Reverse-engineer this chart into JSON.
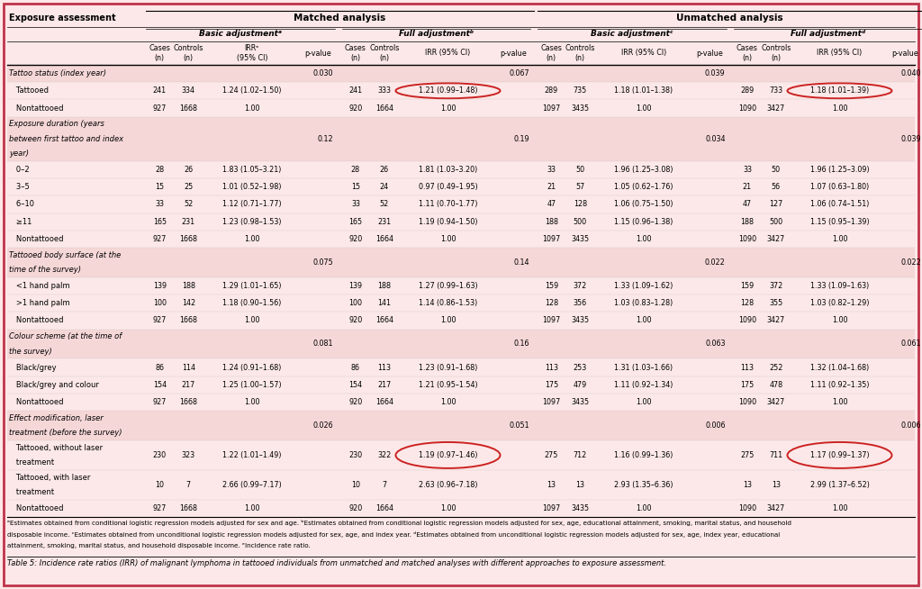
{
  "bg_color": "#fce8e8",
  "border_color": "#c0344a",
  "group_labels": [
    "Basic adjustmentᵃ",
    "Full adjustmentᵇ",
    "Basic adjustmentᶜ",
    "Full adjustmentᵈ"
  ],
  "col_headers": [
    "Cases\n(n)",
    "Controls\n(n)",
    "IRRᵉ\n(95% CI)",
    "p-value",
    "Cases\n(n)",
    "Controls\n(n)",
    "IRR (95% CI)",
    "p-value",
    "Cases\n(n)",
    "Controls\n(n)",
    "IRR (95% CI)",
    "p-value",
    "Cases\n(n)",
    "Controls\n(n)",
    "IRR (95% CI)",
    "p-value"
  ],
  "footnote_text": "ᵃEstimates obtained from conditional logistic regression models adjusted for sex and age. ᵇEstimates obtained from conditional logistic regression models adjusted for sex, age, educational attainment, smoking, marital status, and household disposable income. ᶜEstimates obtained from unconditional logistic regression models adjusted for sex, age, and index year. ᵈEstimates obtained from unconditional logistic regression models adjusted for sex, age, index year, educational attainment, smoking, marital status, and household disposable income. ᵉIncidence rate ratio.",
  "caption": "Table 5: Incidence rate ratios (IRR) of malignant lymphoma in tattooed individuals from unmatched and matched analyses with different approaches to exposure assessment.",
  "circles": [
    [
      1,
      6
    ],
    [
      1,
      14
    ],
    [
      18,
      6
    ],
    [
      18,
      14
    ]
  ],
  "rows": [
    {
      "label": "Tattoo status (index year)",
      "italic": true,
      "data": [
        "",
        "",
        "",
        "0.030",
        "",
        "",
        "",
        "0.067",
        "",
        "",
        "",
        "0.039",
        "",
        "",
        "",
        "0.040"
      ]
    },
    {
      "label": "   Tattooed",
      "italic": false,
      "data": [
        "241",
        "334",
        "1.24 (1.02–1.50)",
        "",
        "241",
        "333",
        "1.21 (0.99–1.48)",
        "",
        "289",
        "735",
        "1.18 (1.01–1.38)",
        "",
        "289",
        "733",
        "1.18 (1.01–1.39)",
        ""
      ]
    },
    {
      "label": "   Nontattooed",
      "italic": false,
      "data": [
        "927",
        "1668",
        "1.00",
        "",
        "920",
        "1664",
        "1.00",
        "",
        "1097",
        "3435",
        "1.00",
        "",
        "1090",
        "3427",
        "1.00",
        ""
      ]
    },
    {
      "label": "Exposure duration (years\nbetween first tattoo and index\nyear)",
      "italic": true,
      "data": [
        "",
        "",
        "",
        "0.12",
        "",
        "",
        "",
        "0.19",
        "",
        "",
        "",
        "0.034",
        "",
        "",
        "",
        "0.039"
      ]
    },
    {
      "label": "   0–2",
      "italic": false,
      "data": [
        "28",
        "26",
        "1.83 (1.05–3.21)",
        "",
        "28",
        "26",
        "1.81 (1.03–3.20)",
        "",
        "33",
        "50",
        "1.96 (1.25–3.08)",
        "",
        "33",
        "50",
        "1.96 (1.25–3.09)",
        ""
      ]
    },
    {
      "label": "   3–5",
      "italic": false,
      "data": [
        "15",
        "25",
        "1.01 (0.52–1.98)",
        "",
        "15",
        "24",
        "0.97 (0.49–1.95)",
        "",
        "21",
        "57",
        "1.05 (0.62–1.76)",
        "",
        "21",
        "56",
        "1.07 (0.63–1.80)",
        ""
      ]
    },
    {
      "label": "   6–10",
      "italic": false,
      "data": [
        "33",
        "52",
        "1.12 (0.71–1.77)",
        "",
        "33",
        "52",
        "1.11 (0.70–1.77)",
        "",
        "47",
        "128",
        "1.06 (0.75–1.50)",
        "",
        "47",
        "127",
        "1.06 (0.74–1.51)",
        ""
      ]
    },
    {
      "label": "   ≥11",
      "italic": false,
      "data": [
        "165",
        "231",
        "1.23 (0.98–1.53)",
        "",
        "165",
        "231",
        "1.19 (0.94–1.50)",
        "",
        "188",
        "500",
        "1.15 (0.96–1.38)",
        "",
        "188",
        "500",
        "1.15 (0.95–1.39)",
        ""
      ]
    },
    {
      "label": "   Nontattooed",
      "italic": false,
      "data": [
        "927",
        "1668",
        "1.00",
        "",
        "920",
        "1664",
        "1.00",
        "",
        "1097",
        "3435",
        "1.00",
        "",
        "1090",
        "3427",
        "1.00",
        ""
      ]
    },
    {
      "label": "Tattooed body surface (at the\ntime of the survey)",
      "italic": true,
      "data": [
        "",
        "",
        "",
        "0.075",
        "",
        "",
        "",
        "0.14",
        "",
        "",
        "",
        "0.022",
        "",
        "",
        "",
        "0.022"
      ]
    },
    {
      "label": "   <1 hand palm",
      "italic": false,
      "data": [
        "139",
        "188",
        "1.29 (1.01–1.65)",
        "",
        "139",
        "188",
        "1.27 (0.99–1.63)",
        "",
        "159",
        "372",
        "1.33 (1.09–1.62)",
        "",
        "159",
        "372",
        "1.33 (1.09–1.63)",
        ""
      ]
    },
    {
      "label": "   >1 hand palm",
      "italic": false,
      "data": [
        "100",
        "142",
        "1.18 (0.90–1.56)",
        "",
        "100",
        "141",
        "1.14 (0.86–1.53)",
        "",
        "128",
        "356",
        "1.03 (0.83–1.28)",
        "",
        "128",
        "355",
        "1.03 (0.82–1.29)",
        ""
      ]
    },
    {
      "label": "   Nontattooed",
      "italic": false,
      "data": [
        "927",
        "1668",
        "1.00",
        "",
        "920",
        "1664",
        "1.00",
        "",
        "1097",
        "3435",
        "1.00",
        "",
        "1090",
        "3427",
        "1.00",
        ""
      ]
    },
    {
      "label": "Colour scheme (at the time of\nthe survey)",
      "italic": true,
      "data": [
        "",
        "",
        "",
        "0.081",
        "",
        "",
        "",
        "0.16",
        "",
        "",
        "",
        "0.063",
        "",
        "",
        "",
        "0.061"
      ]
    },
    {
      "label": "   Black/grey",
      "italic": false,
      "data": [
        "86",
        "114",
        "1.24 (0.91–1.68)",
        "",
        "86",
        "113",
        "1.23 (0.91–1.68)",
        "",
        "113",
        "253",
        "1.31 (1.03–1.66)",
        "",
        "113",
        "252",
        "1.32 (1.04–1.68)",
        ""
      ]
    },
    {
      "label": "   Black/grey and colour",
      "italic": false,
      "data": [
        "154",
        "217",
        "1.25 (1.00–1.57)",
        "",
        "154",
        "217",
        "1.21 (0.95–1.54)",
        "",
        "175",
        "479",
        "1.11 (0.92–1.34)",
        "",
        "175",
        "478",
        "1.11 (0.92–1.35)",
        ""
      ]
    },
    {
      "label": "   Nontattooed",
      "italic": false,
      "data": [
        "927",
        "1668",
        "1.00",
        "",
        "920",
        "1664",
        "1.00",
        "",
        "1097",
        "3435",
        "1.00",
        "",
        "1090",
        "3427",
        "1.00",
        ""
      ]
    },
    {
      "label": "Effect modification, laser\ntreatment (before the survey)",
      "italic": true,
      "data": [
        "",
        "",
        "",
        "0.026",
        "",
        "",
        "",
        "0.051",
        "",
        "",
        "",
        "0.006",
        "",
        "",
        "",
        "0.006"
      ]
    },
    {
      "label": "   Tattooed, without laser\n   treatment",
      "italic": false,
      "data": [
        "230",
        "323",
        "1.22 (1.01–1.49)",
        "",
        "230",
        "322",
        "1.19 (0.97–1.46)",
        "",
        "275",
        "712",
        "1.16 (0.99–1.36)",
        "",
        "275",
        "711",
        "1.17 (0.99–1.37)",
        ""
      ]
    },
    {
      "label": "   Tattooed, with laser\n   treatment",
      "italic": false,
      "data": [
        "10",
        "7",
        "2.66 (0.99–7.17)",
        "",
        "10",
        "7",
        "2.63 (0.96–7.18)",
        "",
        "13",
        "13",
        "2.93 (1.35–6.36)",
        "",
        "13",
        "13",
        "2.99 (1.37–6.52)",
        ""
      ]
    },
    {
      "label": "   Nontattooed",
      "italic": false,
      "data": [
        "927",
        "1668",
        "1.00",
        "",
        "920",
        "1664",
        "1.00",
        "",
        "1097",
        "3435",
        "1.00",
        "",
        "1090",
        "3427",
        "1.00",
        ""
      ]
    }
  ]
}
